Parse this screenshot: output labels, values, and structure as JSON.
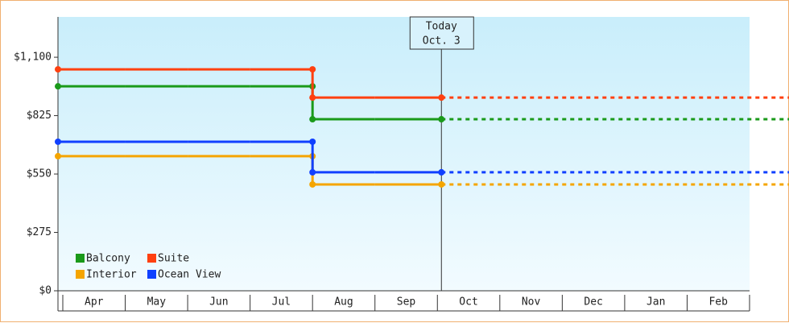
{
  "chart_data": {
    "type": "line",
    "categories": [
      "Apr",
      "May",
      "Jun",
      "Jul",
      "Aug",
      "Sep",
      "Oct",
      "Nov",
      "Dec",
      "Jan",
      "Feb"
    ],
    "series": [
      {
        "name": "Balcony",
        "color": "#1a9a1a",
        "values": [
          963,
          963,
          963,
          963,
          808,
          808,
          null,
          null,
          null,
          null,
          null
        ]
      },
      {
        "name": "Suite",
        "color": "#ff4010",
        "values": [
          1043,
          1043,
          1043,
          1043,
          910,
          910,
          null,
          null,
          null,
          null,
          null
        ]
      },
      {
        "name": "Interior",
        "color": "#f5a500",
        "values": [
          634,
          634,
          634,
          634,
          501,
          501,
          null,
          null,
          null,
          null,
          null
        ]
      },
      {
        "name": "Ocean View",
        "color": "#1040ff",
        "values": [
          702,
          702,
          702,
          702,
          558,
          558,
          null,
          null,
          null,
          null,
          null
        ]
      }
    ],
    "today_label": "Today",
    "today_date": "Oct. 3",
    "ylim": [
      0,
      1290
    ],
    "yticks": [
      {
        "value": 0,
        "label": "$0"
      },
      {
        "value": 275,
        "label": "$275"
      },
      {
        "value": 550,
        "label": "$550"
      },
      {
        "value": 825,
        "label": "$825"
      },
      {
        "value": 1100,
        "label": "$1,100"
      }
    ],
    "legend": "bottom-left"
  }
}
